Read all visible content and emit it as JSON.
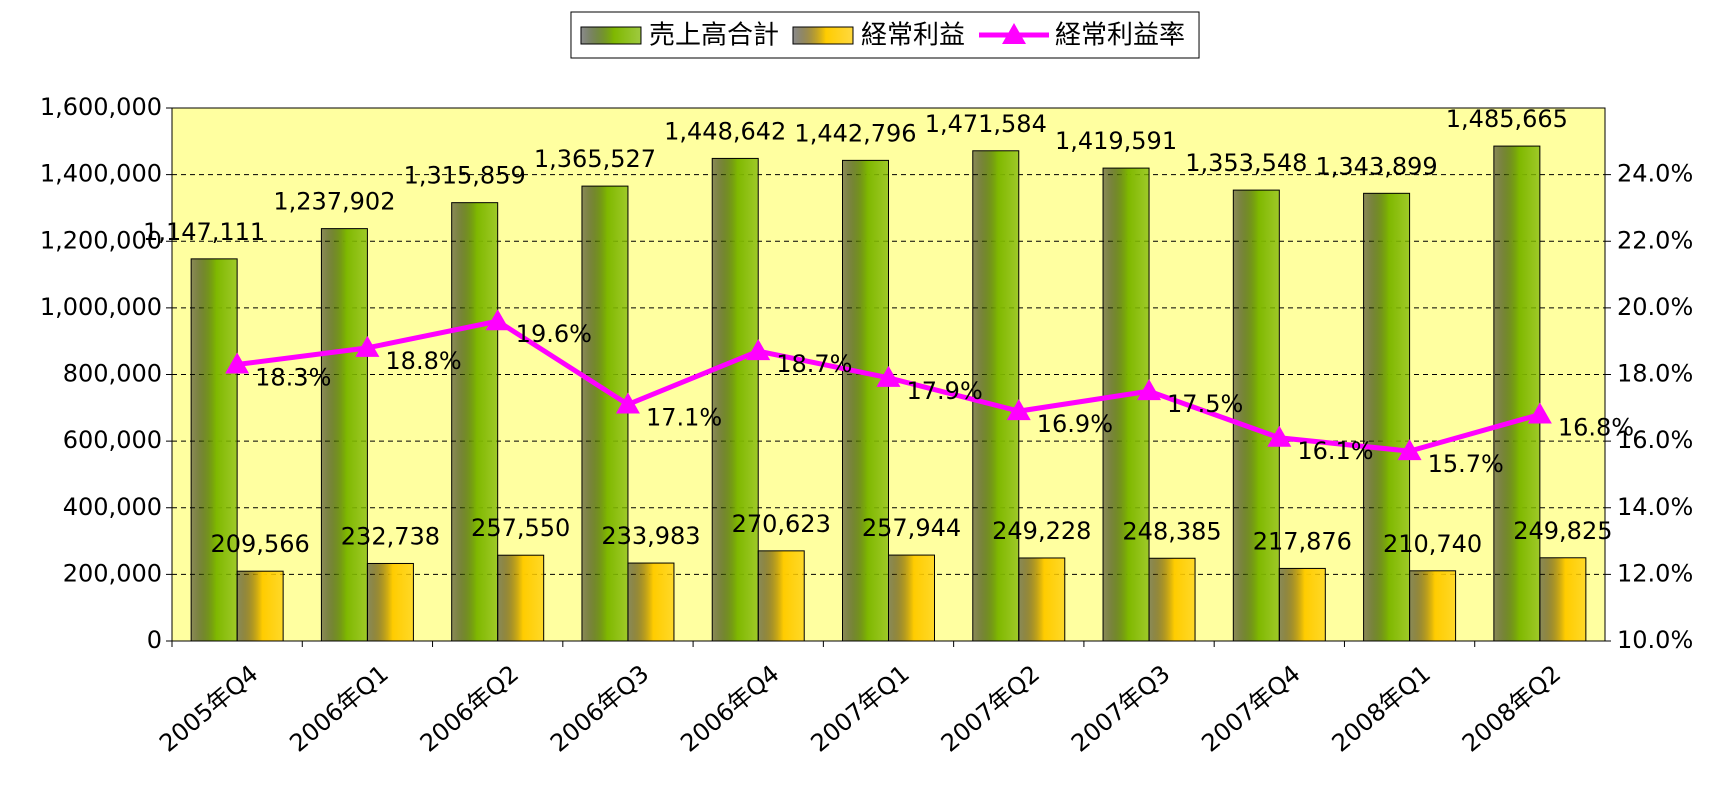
{
  "chart_data": {
    "type": "bar",
    "categories": [
      "2005年Q4",
      "2006年Q1",
      "2006年Q2",
      "2006年Q3",
      "2006年Q4",
      "2007年Q1",
      "2007年Q2",
      "2007年Q3",
      "2007年Q4",
      "2008年Q1",
      "2008年Q2"
    ],
    "series": [
      {
        "name": "売上高合計",
        "color": "#7fb800",
        "values": [
          1147111,
          1237902,
          1315859,
          1365527,
          1448642,
          1442796,
          1471584,
          1419591,
          1353548,
          1343899,
          1485665
        ],
        "value_labels": [
          "1,147,111",
          "1,237,902",
          "1,315,859",
          "1,365,527",
          "1,448,642",
          "1,442,796",
          "1,471,584",
          "1,419,591",
          "1,353,548",
          "1,343,899",
          "1,485,665"
        ]
      },
      {
        "name": "経常利益",
        "color": "#ffcc00",
        "values": [
          209566,
          232738,
          257550,
          233983,
          270623,
          257944,
          249228,
          248385,
          217876,
          210740,
          249825
        ],
        "value_labels": [
          "209,566",
          "232,738",
          "257,550",
          "233,983",
          "270,623",
          "257,944",
          "249,228",
          "248,385",
          "217,876",
          "210,740",
          "249,825"
        ]
      },
      {
        "name": "経常利益率",
        "color": "#ff00ff",
        "type": "line",
        "axis": "y2",
        "values": [
          18.3,
          18.8,
          19.6,
          17.1,
          18.7,
          17.9,
          16.9,
          17.5,
          16.1,
          15.7,
          16.8
        ],
        "value_labels": [
          "18.3%",
          "18.8%",
          "19.6%",
          "17.1%",
          "18.7%",
          "17.9%",
          "16.9%",
          "17.5%",
          "16.1%",
          "15.7%",
          "16.8%"
        ]
      }
    ],
    "ylim": [
      0,
      1600000
    ],
    "yticks": [
      0,
      {
        "value": 200000,
        "label": "200,000"
      },
      {
        "value": 400000,
        "label": "400,000"
      },
      {
        "value": 600000,
        "label": "600,000"
      },
      {
        "value": 800000,
        "label": "800,000"
      },
      {
        "value": 1000000,
        "label": "1,000,000"
      },
      {
        "value": 1200000,
        "label": "1,200,000"
      },
      {
        "value": 1400000,
        "label": "1,400,000"
      },
      {
        "value": 1600000,
        "label": "1,600,000"
      }
    ],
    "y2lim": [
      10,
      26
    ],
    "y2ticks": [
      {
        "value": 10,
        "label": "10.0%"
      },
      {
        "value": 12,
        "label": "12.0%"
      },
      {
        "value": 14,
        "label": "14.0%"
      },
      {
        "value": 16,
        "label": "16.0%"
      },
      {
        "value": 18,
        "label": "18.0%"
      },
      {
        "value": 20,
        "label": "20.0%"
      },
      {
        "value": 22,
        "label": "22.0%"
      },
      {
        "value": 24,
        "label": "24.0%"
      }
    ],
    "grid": true,
    "legend": "top",
    "plot_background": "#ffffa0"
  }
}
